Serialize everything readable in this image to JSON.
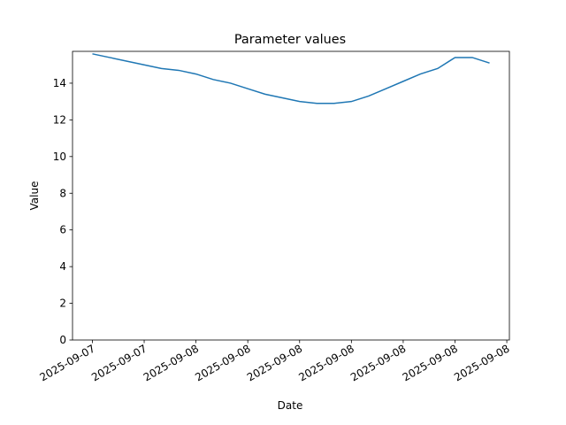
{
  "chart_data": {
    "type": "line",
    "title": "Parameter values",
    "x_label": "Date",
    "y_label": "Value",
    "x": [
      0,
      1,
      2,
      3,
      4,
      5,
      6,
      7,
      8,
      9,
      10,
      11,
      12,
      13,
      14,
      15,
      16,
      17,
      18,
      19,
      20,
      21,
      22,
      23
    ],
    "series": [
      {
        "name": "Value",
        "color": "#1f77b4",
        "values": [
          15.6,
          15.4,
          15.2,
          15.0,
          14.8,
          14.7,
          14.5,
          14.2,
          14.0,
          13.7,
          13.4,
          13.2,
          13.0,
          12.9,
          12.9,
          13.0,
          13.3,
          13.7,
          14.1,
          14.5,
          14.8,
          15.4,
          15.4,
          15.1
        ]
      }
    ],
    "xlim": [
      -1.15,
      24.15
    ],
    "xticks": [
      {
        "value": 0,
        "label": "2025-09-07"
      },
      {
        "value": 3,
        "label": "2025-09-07"
      },
      {
        "value": 6,
        "label": "2025-09-08"
      },
      {
        "value": 9,
        "label": "2025-09-08"
      },
      {
        "value": 12,
        "label": "2025-09-08"
      },
      {
        "value": 15,
        "label": "2025-09-08"
      },
      {
        "value": 18,
        "label": "2025-09-08"
      },
      {
        "value": 21,
        "label": "2025-09-08"
      },
      {
        "value": 24,
        "label": "2025-09-08"
      }
    ],
    "ylim": [
      0,
      15.735
    ],
    "yticks": [
      0,
      2,
      4,
      6,
      8,
      10,
      12,
      14
    ],
    "grid": false
  }
}
